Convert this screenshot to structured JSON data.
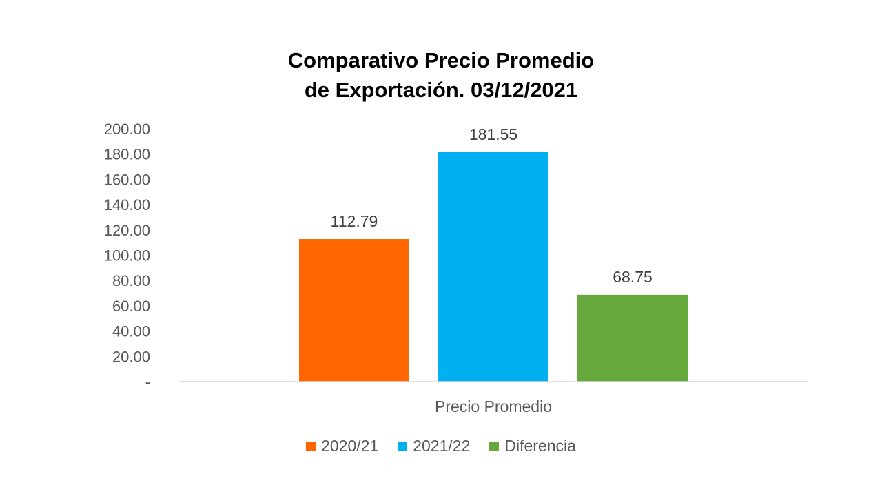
{
  "chart_data": {
    "type": "bar",
    "title_lines": [
      "Comparativo Precio Promedio",
      "de Exportación. 03/12/2021"
    ],
    "categories": [
      "Precio Promedio"
    ],
    "series": [
      {
        "name": "2020/21",
        "values": [
          112.79
        ],
        "label": "112.79",
        "color": "#FF6600"
      },
      {
        "name": "2021/22",
        "values": [
          181.55
        ],
        "label": "181.55",
        "color": "#00B0F0"
      },
      {
        "name": "Diferencia",
        "values": [
          68.75
        ],
        "label": "68.75",
        "color": "#66A83C"
      }
    ],
    "ylim": [
      0,
      200
    ],
    "y_ticks": [
      0,
      20,
      40,
      60,
      80,
      100,
      120,
      140,
      160,
      180,
      200
    ],
    "y_tick_labels": [
      "-",
      "20.00",
      "40.00",
      "60.00",
      "80.00",
      "100.00",
      "120.00",
      "140.00",
      "160.00",
      "180.00",
      "200.00"
    ],
    "grid": false,
    "legend_position": "bottom"
  }
}
